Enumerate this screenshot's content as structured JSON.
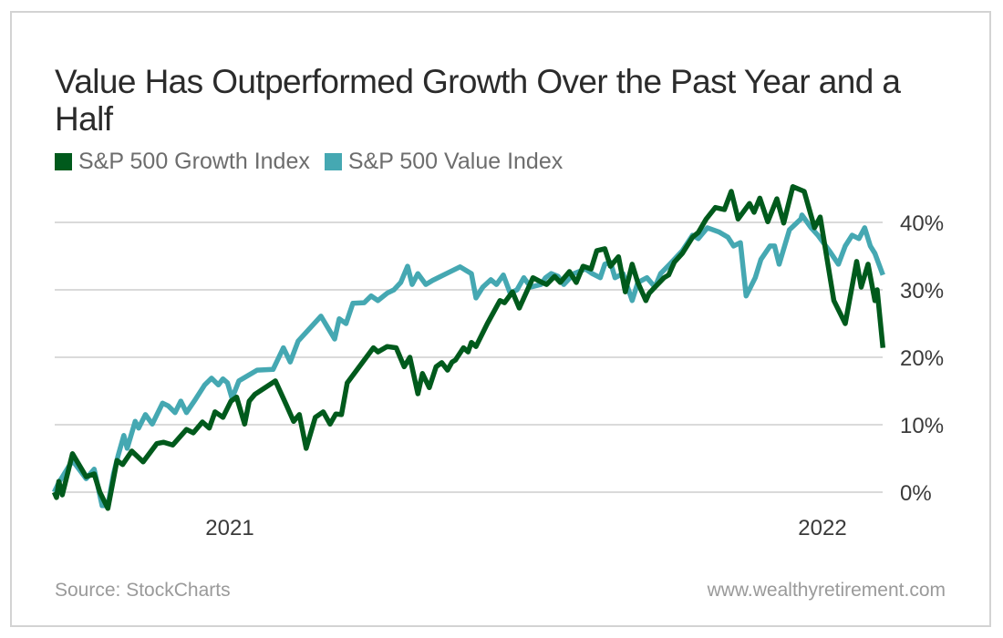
{
  "chart_data": {
    "type": "line",
    "title": "Value Has Outperformed Growth Over the Past Year and a Half",
    "xlabel": "",
    "ylabel": "",
    "x_unit": "weeks relative to Jan 1, 2021",
    "x_range": [
      -15.4,
      57.3
    ],
    "x_ticks": [
      {
        "label": "2021",
        "x": 0
      },
      {
        "label": "2022",
        "x": 52
      }
    ],
    "ylim": [
      -3,
      47
    ],
    "y_ticks": [
      {
        "label": "0%",
        "value": 0
      },
      {
        "label": "10%",
        "value": 10
      },
      {
        "label": "20%",
        "value": 20
      },
      {
        "label": "30%",
        "value": 30
      },
      {
        "label": "40%",
        "value": 40
      }
    ],
    "grid": true,
    "legend_position": "top-left",
    "series": [
      {
        "name": "S&P 500 Growth Index",
        "color": "#005a1c",
        "points": [
          [
            -15.4,
            0.0
          ],
          [
            -15.2,
            -0.8
          ],
          [
            -15.0,
            1.6
          ],
          [
            -14.7,
            -0.4
          ],
          [
            -13.8,
            5.7
          ],
          [
            -12.6,
            2.3
          ],
          [
            -11.9,
            2.7
          ],
          [
            -11.4,
            0.0
          ],
          [
            -10.7,
            -2.4
          ],
          [
            -9.9,
            4.7
          ],
          [
            -9.4,
            4.1
          ],
          [
            -8.6,
            6.1
          ],
          [
            -7.6,
            4.5
          ],
          [
            -6.4,
            7.2
          ],
          [
            -5.8,
            7.4
          ],
          [
            -5.0,
            7.0
          ],
          [
            -3.8,
            9.3
          ],
          [
            -3.2,
            8.8
          ],
          [
            -2.4,
            10.4
          ],
          [
            -1.8,
            9.5
          ],
          [
            -1.3,
            11.9
          ],
          [
            -0.6,
            11.1
          ],
          [
            0.1,
            13.5
          ],
          [
            0.6,
            14.1
          ],
          [
            1.3,
            10.1
          ],
          [
            1.7,
            13.5
          ],
          [
            2.2,
            14.5
          ],
          [
            4.0,
            16.5
          ],
          [
            5.0,
            12.8
          ],
          [
            5.6,
            10.5
          ],
          [
            6.1,
            11.5
          ],
          [
            6.7,
            6.5
          ],
          [
            7.5,
            11.1
          ],
          [
            8.2,
            11.9
          ],
          [
            8.8,
            10.1
          ],
          [
            9.3,
            11.6
          ],
          [
            9.8,
            11.5
          ],
          [
            10.3,
            16.2
          ],
          [
            12.6,
            21.4
          ],
          [
            13.0,
            20.8
          ],
          [
            13.8,
            21.6
          ],
          [
            14.6,
            21.4
          ],
          [
            15.3,
            18.6
          ],
          [
            15.8,
            20.0
          ],
          [
            16.5,
            14.6
          ],
          [
            16.9,
            17.6
          ],
          [
            17.5,
            15.5
          ],
          [
            18.1,
            18.6
          ],
          [
            18.6,
            19.2
          ],
          [
            19.1,
            18.1
          ],
          [
            19.5,
            19.3
          ],
          [
            19.8,
            19.6
          ],
          [
            20.5,
            21.4
          ],
          [
            20.9,
            20.8
          ],
          [
            21.2,
            22.2
          ],
          [
            21.6,
            21.6
          ],
          [
            22.6,
            25.0
          ],
          [
            23.7,
            28.4
          ],
          [
            24.1,
            28.1
          ],
          [
            24.8,
            29.7
          ],
          [
            25.4,
            27.3
          ],
          [
            26.6,
            31.8
          ],
          [
            27.4,
            31.1
          ],
          [
            27.8,
            30.8
          ],
          [
            28.5,
            32.0
          ],
          [
            29.0,
            31.1
          ],
          [
            29.8,
            32.7
          ],
          [
            30.4,
            31.1
          ],
          [
            31.0,
            33.5
          ],
          [
            31.7,
            33.1
          ],
          [
            32.2,
            35.8
          ],
          [
            32.9,
            36.1
          ],
          [
            33.4,
            33.5
          ],
          [
            34.1,
            34.9
          ],
          [
            34.7,
            29.7
          ],
          [
            35.3,
            33.8
          ],
          [
            35.8,
            31.1
          ],
          [
            36.5,
            28.4
          ],
          [
            36.8,
            29.5
          ],
          [
            37.3,
            30.4
          ],
          [
            38.1,
            31.8
          ],
          [
            38.5,
            32.2
          ],
          [
            39.0,
            34.1
          ],
          [
            39.7,
            35.4
          ],
          [
            40.6,
            37.8
          ],
          [
            41.1,
            38.5
          ],
          [
            41.8,
            40.5
          ],
          [
            42.6,
            42.2
          ],
          [
            43.4,
            41.9
          ],
          [
            44.0,
            44.6
          ],
          [
            44.6,
            40.5
          ],
          [
            45.6,
            42.8
          ],
          [
            46.0,
            41.5
          ],
          [
            46.5,
            43.6
          ],
          [
            47.2,
            40.1
          ],
          [
            48.0,
            43.5
          ],
          [
            48.6,
            39.9
          ],
          [
            49.4,
            45.3
          ],
          [
            50.4,
            44.6
          ],
          [
            51.3,
            39.2
          ],
          [
            51.8,
            40.8
          ],
          [
            53.0,
            28.4
          ],
          [
            54.0,
            25.0
          ],
          [
            55.0,
            34.2
          ],
          [
            55.4,
            30.4
          ],
          [
            56.0,
            33.8
          ],
          [
            56.6,
            28.4
          ],
          [
            56.8,
            30.0
          ],
          [
            57.3,
            21.4
          ]
        ]
      },
      {
        "name": "S&P 500 Value Index",
        "color": "#45a8b2",
        "points": [
          [
            -15.4,
            0.0
          ],
          [
            -15.0,
            1.4
          ],
          [
            -13.8,
            4.7
          ],
          [
            -12.6,
            2.0
          ],
          [
            -11.9,
            3.4
          ],
          [
            -11.2,
            -2.0
          ],
          [
            -10.7,
            -2.0
          ],
          [
            -10.2,
            2.7
          ],
          [
            -9.8,
            5.4
          ],
          [
            -9.3,
            8.4
          ],
          [
            -9.0,
            6.5
          ],
          [
            -8.3,
            10.5
          ],
          [
            -8.0,
            9.5
          ],
          [
            -7.4,
            11.5
          ],
          [
            -6.8,
            10.1
          ],
          [
            -5.9,
            13.2
          ],
          [
            -5.4,
            12.8
          ],
          [
            -4.8,
            11.8
          ],
          [
            -4.3,
            13.5
          ],
          [
            -3.8,
            11.8
          ],
          [
            -3.0,
            13.8
          ],
          [
            -2.2,
            15.9
          ],
          [
            -1.6,
            16.9
          ],
          [
            -1.0,
            15.9
          ],
          [
            -0.6,
            16.8
          ],
          [
            -0.2,
            16.2
          ],
          [
            0.2,
            13.9
          ],
          [
            0.8,
            16.5
          ],
          [
            2.4,
            18.1
          ],
          [
            3.8,
            18.2
          ],
          [
            4.7,
            21.4
          ],
          [
            5.3,
            19.3
          ],
          [
            6.0,
            22.4
          ],
          [
            8.0,
            26.1
          ],
          [
            9.2,
            22.7
          ],
          [
            9.6,
            25.7
          ],
          [
            10.2,
            25.0
          ],
          [
            10.8,
            28.0
          ],
          [
            11.8,
            28.1
          ],
          [
            12.4,
            29.1
          ],
          [
            13.0,
            28.4
          ],
          [
            13.8,
            29.5
          ],
          [
            14.4,
            30.0
          ],
          [
            15.0,
            31.1
          ],
          [
            15.6,
            33.5
          ],
          [
            16.0,
            30.8
          ],
          [
            16.5,
            32.4
          ],
          [
            17.2,
            30.8
          ],
          [
            17.8,
            31.4
          ],
          [
            19.0,
            32.4
          ],
          [
            20.2,
            33.4
          ],
          [
            21.2,
            32.4
          ],
          [
            21.6,
            28.8
          ],
          [
            22.2,
            30.4
          ],
          [
            22.9,
            31.5
          ],
          [
            23.4,
            30.8
          ],
          [
            24.0,
            32.2
          ],
          [
            24.6,
            29.5
          ],
          [
            25.2,
            30.0
          ],
          [
            25.8,
            31.8
          ],
          [
            26.4,
            30.4
          ],
          [
            27.3,
            30.8
          ],
          [
            27.7,
            31.8
          ],
          [
            28.2,
            32.4
          ],
          [
            28.8,
            32.0
          ],
          [
            29.3,
            30.8
          ],
          [
            30.2,
            32.4
          ],
          [
            31.2,
            33.1
          ],
          [
            31.8,
            32.4
          ],
          [
            32.5,
            31.8
          ],
          [
            32.9,
            33.8
          ],
          [
            33.4,
            34.1
          ],
          [
            33.8,
            31.8
          ],
          [
            34.5,
            32.4
          ],
          [
            35.3,
            28.4
          ],
          [
            35.8,
            31.1
          ],
          [
            36.6,
            31.8
          ],
          [
            37.3,
            30.4
          ],
          [
            37.8,
            32.4
          ],
          [
            38.6,
            33.8
          ],
          [
            39.7,
            35.8
          ],
          [
            40.6,
            38.1
          ],
          [
            41.1,
            37.6
          ],
          [
            41.9,
            39.2
          ],
          [
            42.9,
            38.6
          ],
          [
            43.7,
            37.8
          ],
          [
            44.2,
            36.5
          ],
          [
            44.8,
            37.0
          ],
          [
            45.3,
            29.1
          ],
          [
            46.1,
            31.8
          ],
          [
            46.6,
            34.5
          ],
          [
            47.4,
            36.5
          ],
          [
            47.8,
            36.5
          ],
          [
            48.2,
            33.8
          ],
          [
            49.1,
            38.9
          ],
          [
            50.1,
            40.5
          ],
          [
            50.2,
            41.1
          ],
          [
            51.0,
            39.2
          ],
          [
            51.6,
            38.1
          ],
          [
            52.6,
            35.8
          ],
          [
            53.4,
            33.8
          ],
          [
            54.0,
            36.5
          ],
          [
            54.6,
            38.1
          ],
          [
            55.2,
            37.6
          ],
          [
            55.7,
            39.2
          ],
          [
            56.2,
            36.5
          ],
          [
            56.6,
            35.4
          ],
          [
            57.3,
            32.2
          ]
        ]
      }
    ]
  },
  "header": {
    "title": "Value Has Outperformed Growth Over the Past Year and a Half"
  },
  "legend": [
    {
      "label": "S&P 500 Growth Index",
      "color": "#005a1c"
    },
    {
      "label": "S&P 500 Value Index",
      "color": "#45a8b2"
    }
  ],
  "footer": {
    "source": "Source: StockCharts",
    "site": "www.wealthyretirement.com"
  }
}
